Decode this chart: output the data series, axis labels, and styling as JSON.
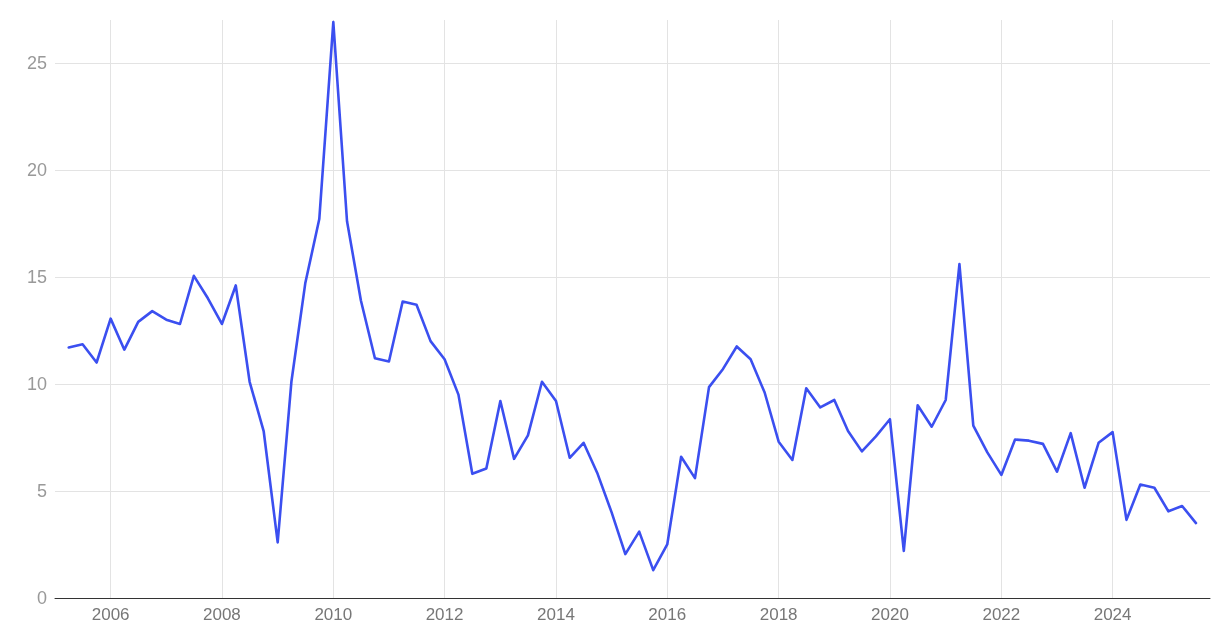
{
  "chart_data": {
    "type": "line",
    "x": [
      "2005-04",
      "2005-07",
      "2005-10",
      "2006-01",
      "2006-04",
      "2006-07",
      "2006-10",
      "2007-01",
      "2007-04",
      "2007-07",
      "2007-10",
      "2008-01",
      "2008-04",
      "2008-07",
      "2008-10",
      "2009-01",
      "2009-04",
      "2009-07",
      "2009-10",
      "2010-01",
      "2010-04",
      "2010-07",
      "2010-10",
      "2011-01",
      "2011-04",
      "2011-07",
      "2011-10",
      "2012-01",
      "2012-04",
      "2012-07",
      "2012-10",
      "2013-01",
      "2013-04",
      "2013-07",
      "2013-10",
      "2014-01",
      "2014-04",
      "2014-07",
      "2014-10",
      "2015-01",
      "2015-04",
      "2015-07",
      "2015-10",
      "2016-01",
      "2016-04",
      "2016-07",
      "2016-10",
      "2017-01",
      "2017-04",
      "2017-07",
      "2017-10",
      "2018-01",
      "2018-04",
      "2018-07",
      "2018-10",
      "2019-01",
      "2019-04",
      "2019-07",
      "2019-10",
      "2020-01",
      "2020-04",
      "2020-07",
      "2020-10",
      "2021-01",
      "2021-04",
      "2021-07",
      "2021-10",
      "2022-01",
      "2022-04",
      "2022-07",
      "2022-10",
      "2023-01",
      "2023-04",
      "2023-07",
      "2023-10",
      "2024-01",
      "2024-04",
      "2024-07",
      "2024-10",
      "2025-01",
      "2025-04",
      "2025-07"
    ],
    "series": [
      {
        "color": "#3b4ff0",
        "values": [
          11.7,
          11.85,
          11.0,
          13.05,
          11.6,
          12.9,
          13.4,
          13.0,
          12.8,
          15.05,
          14.0,
          12.8,
          14.6,
          10.1,
          7.8,
          2.6,
          10.1,
          14.7,
          17.7,
          26.9,
          17.6,
          13.9,
          11.2,
          11.05,
          13.85,
          13.7,
          12.0,
          11.15,
          9.5,
          5.8,
          6.05,
          9.2,
          6.5,
          7.6,
          10.1,
          9.2,
          6.55,
          7.25,
          5.8,
          4.0,
          2.05,
          3.1,
          1.3,
          2.5,
          6.6,
          5.6,
          9.85,
          10.7,
          11.75,
          11.15,
          9.6,
          7.3,
          6.45,
          9.8,
          8.9,
          9.25,
          7.8,
          6.85,
          7.55,
          8.35,
          2.2,
          9.0,
          8.0,
          9.25,
          15.6,
          8.05,
          6.8,
          5.75,
          7.4,
          7.35,
          7.2,
          5.9,
          7.7,
          5.15,
          7.25,
          7.75,
          3.65,
          5.3,
          5.15,
          4.05,
          4.3,
          3.5
        ]
      }
    ],
    "xlim": [
      "2005-01",
      "2025-10"
    ],
    "xticks": [
      "2006",
      "2008",
      "2010",
      "2012",
      "2014",
      "2016",
      "2018",
      "2020",
      "2022",
      "2024"
    ],
    "ylim": [
      0,
      27
    ],
    "yticks": [
      0,
      5,
      10,
      15,
      20,
      25
    ],
    "grid": true,
    "marker": "none",
    "line_style": "solid"
  }
}
